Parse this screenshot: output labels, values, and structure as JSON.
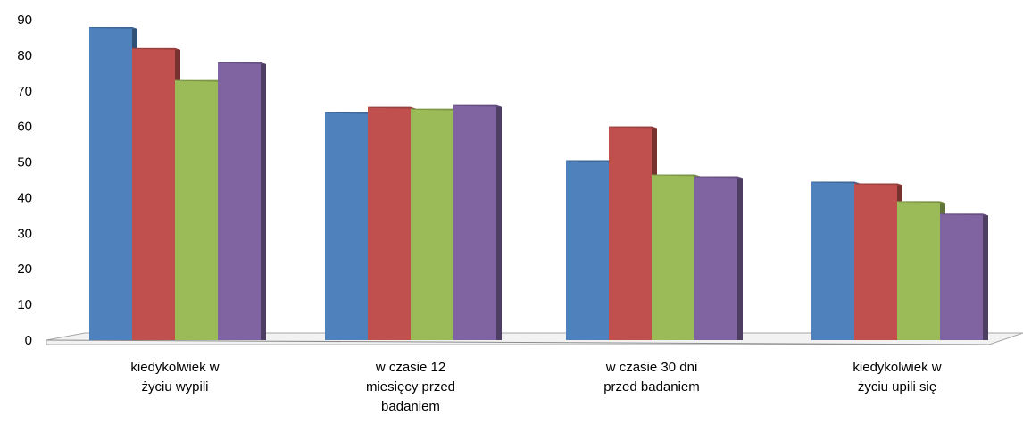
{
  "chart_data": {
    "type": "bar",
    "title": "",
    "xlabel": "",
    "ylabel": "",
    "ylim": [
      0,
      90
    ],
    "yticks": [
      0,
      10,
      20,
      30,
      40,
      50,
      60,
      70,
      80,
      90
    ],
    "grid": false,
    "legend": "none",
    "style": "3d",
    "categories": [
      [
        "kiedykolwiek w",
        "życiu wypili"
      ],
      [
        "w czasie 12",
        "miesięcy przed",
        "badaniem"
      ],
      [
        "w czasie 30 dni",
        "przed badaniem"
      ],
      [
        "kiedykolwiek w",
        "życiu upili się"
      ]
    ],
    "series": [
      {
        "values": [
          88,
          64,
          50.5,
          44.5
        ],
        "color": "#4f81bd"
      },
      {
        "values": [
          82,
          65.5,
          60,
          44
        ],
        "color": "#c0504d"
      },
      {
        "values": [
          73,
          65,
          46.5,
          39
        ],
        "color": "#9bbb59"
      },
      {
        "values": [
          78,
          66,
          46,
          35.5
        ],
        "color": "#8064a2"
      }
    ]
  }
}
